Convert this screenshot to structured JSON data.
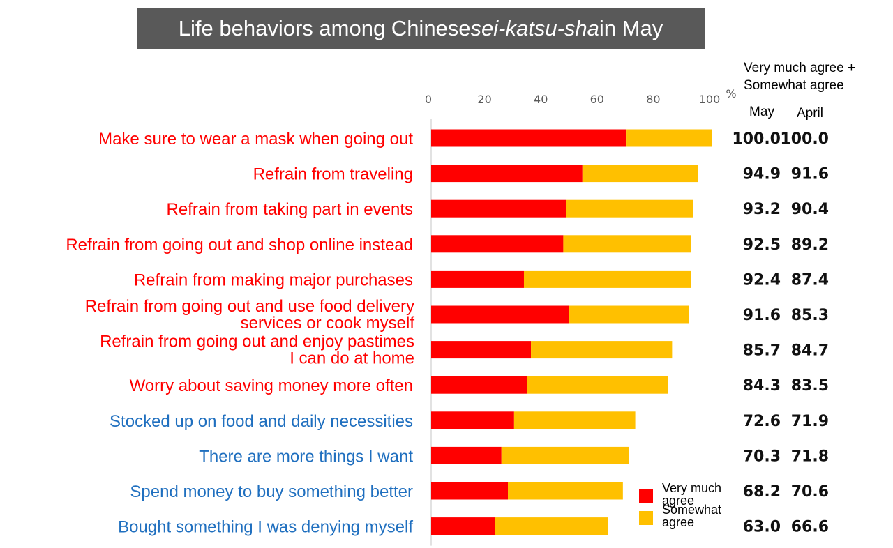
{
  "chart_data": {
    "type": "bar",
    "orientation": "horizontal",
    "stacked": true,
    "title_prefix": "Life behaviors among Chinese ",
    "title_italic": "sei-katsu-sha",
    "title_suffix": " in May",
    "x_ticks": [
      "0",
      "20",
      "40",
      "60",
      "80",
      "100"
    ],
    "x_unit": "%",
    "xlim": [
      0,
      100
    ],
    "header_line1": "Very much agree +",
    "header_line2": "Somewhat agree",
    "col_may": "May",
    "col_april": "April",
    "colors": {
      "very": "#ff0000",
      "somewhat": "#ffc000",
      "label_red": "#ff0000",
      "label_blue": "#1f6fbf"
    },
    "categories": [
      {
        "lines": [
          "Make sure to wear a mask when going out"
        ],
        "color": "red",
        "very": 69.5,
        "somewhat": 30.5,
        "may": "100.0",
        "april": "100.0"
      },
      {
        "lines": [
          "Refrain from traveling"
        ],
        "color": "red",
        "very": 53.8,
        "somewhat": 41.1,
        "may": "94.9",
        "april": "91.6"
      },
      {
        "lines": [
          "Refrain from taking part in events"
        ],
        "color": "red",
        "very": 48.0,
        "somewhat": 45.2,
        "may": "93.2",
        "april": "90.4"
      },
      {
        "lines": [
          "Refrain from going out and shop online instead"
        ],
        "color": "red",
        "very": 47.0,
        "somewhat": 45.5,
        "may": "92.5",
        "april": "89.2"
      },
      {
        "lines": [
          "Refrain from making major purchases"
        ],
        "color": "red",
        "very": 33.0,
        "somewhat": 59.4,
        "may": "92.4",
        "april": "87.4"
      },
      {
        "lines": [
          "Refrain from going out and use food delivery",
          "services or cook myself"
        ],
        "color": "red",
        "very": 49.0,
        "somewhat": 42.6,
        "may": "91.6",
        "april": "85.3"
      },
      {
        "lines": [
          "Refrain from going out and enjoy pastimes",
          "I can do at home"
        ],
        "color": "red",
        "very": 35.5,
        "somewhat": 50.2,
        "may": "85.7",
        "april": "84.7"
      },
      {
        "lines": [
          "Worry about saving money more often"
        ],
        "color": "red",
        "very": 34.0,
        "somewhat": 50.3,
        "may": "84.3",
        "april": "83.5"
      },
      {
        "lines": [
          "Stocked up on food and daily necessities"
        ],
        "color": "blue",
        "very": 29.5,
        "somewhat": 43.1,
        "may": "72.6",
        "april": "71.9"
      },
      {
        "lines": [
          "There are more things I want"
        ],
        "color": "blue",
        "very": 25.0,
        "somewhat": 45.3,
        "may": "70.3",
        "april": "71.8"
      },
      {
        "lines": [
          "Spend money to buy something better"
        ],
        "color": "blue",
        "very": 27.3,
        "somewhat": 40.9,
        "may": "68.2",
        "april": "70.6"
      },
      {
        "lines": [
          "Bought something I was denying myself"
        ],
        "color": "blue",
        "very": 22.8,
        "somewhat": 40.2,
        "may": "63.0",
        "april": "66.6"
      }
    ],
    "legend": [
      {
        "key": "very",
        "line1": "Very much",
        "line2": "agree"
      },
      {
        "key": "somewhat",
        "line1": "Somewhat",
        "line2": "agree"
      }
    ]
  }
}
